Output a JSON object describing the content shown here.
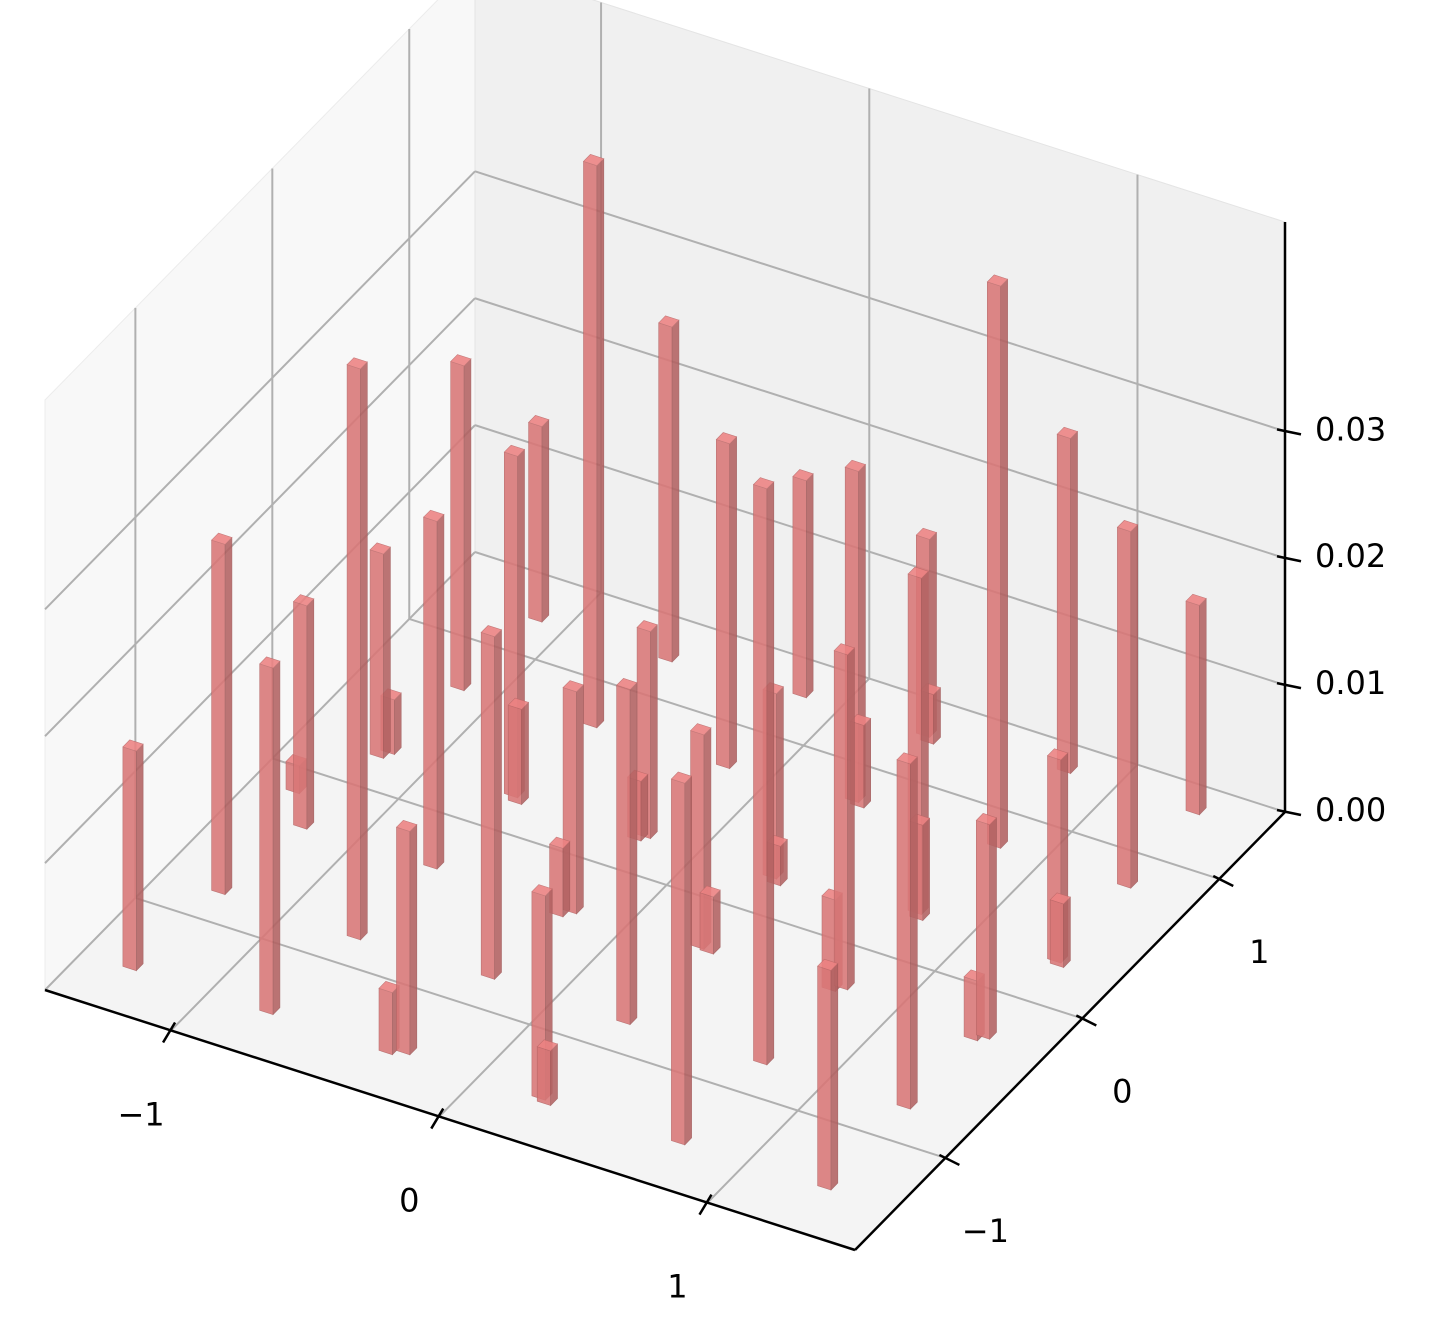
{
  "chart_data": {
    "type": "bar3d",
    "color": "#e07b7b",
    "grid": true,
    "x": [
      -1.29,
      -1.25,
      -0.78,
      -1.2,
      -1.32,
      -0.74,
      -1.18,
      -1.16,
      -0.28,
      -0.33,
      -0.72,
      -1.14,
      -0.25,
      -0.69,
      -0.66,
      -1.11,
      0.23,
      0.26,
      -0.23,
      -0.2,
      -0.66,
      0.26,
      -0.22,
      -0.2,
      -0.63,
      0.75,
      0.3,
      0.26,
      -0.17,
      0.76,
      0.27,
      0.3,
      -0.15,
      1.29,
      0.75,
      0.78,
      0.29,
      0.32,
      1.29,
      0.78,
      0.8,
      0.31,
      0.34,
      1.29,
      0.82,
      1.32,
      1.31,
      1.33,
      0.81,
      1.3,
      1.29
    ],
    "y": [
      -1.37,
      -0.8,
      -1.37,
      -0.3,
      -0.12,
      -0.81,
      0.22,
      0.26,
      -1.35,
      -1.38,
      -0.29,
      0.73,
      -0.79,
      0.24,
      0.21,
      1.24,
      -1.36,
      -1.38,
      -0.33,
      -0.29,
      0.76,
      -0.8,
      0.22,
      0.25,
      1.25,
      -1.36,
      -0.27,
      -0.26,
      0.77,
      -0.78,
      0.25,
      0.22,
      1.29,
      -1.35,
      -0.26,
      -0.23,
      0.81,
      0.79,
      -0.77,
      0.31,
      0.28,
      1.29,
      1.26,
      -0.28,
      0.81,
      -0.25,
      0.29,
      0.27,
      1.34,
      0.82,
      1.34
    ],
    "values": [
      0.0173,
      0.0276,
      0.0273,
      0.0176,
      0.0022,
      0.045,
      0.0161,
      0.0043,
      0.0176,
      0.0049,
      0.0274,
      0.0256,
      0.027,
      0.0269,
      0.0075,
      0.0154,
      0.0161,
      0.0043,
      0.0054,
      0.0175,
      0.0443,
      0.0264,
      0.0047,
      0.0163,
      0.0264,
      0.0285,
      0.0045,
      0.0169,
      0.0256,
      0.0454,
      0.0146,
      0.0031,
      0.0171,
      0.0173,
      0.0072,
      0.0264,
      0.0261,
      0.0065,
      0.0272,
      0.0265,
      0.0075,
      0.0156,
      0.0039,
      0.0047,
      0.0443,
      0.0169,
      0.016,
      0.005,
      0.0264,
      0.0281,
      0.0165
    ],
    "xlim": [
      -1.47,
      1.55
    ],
    "ylim": [
      -1.66,
      1.48
    ],
    "zlim": [
      0,
      0.0465
    ],
    "xticks": [
      {
        "value": -1,
        "label": "−1"
      },
      0,
      1
    ],
    "yticks": [
      {
        "value": -1,
        "label": "−1"
      },
      0,
      1
    ],
    "zticks": [
      {
        "value": 0,
        "label": "0.00"
      },
      0.01,
      0.02,
      0.03
    ]
  }
}
